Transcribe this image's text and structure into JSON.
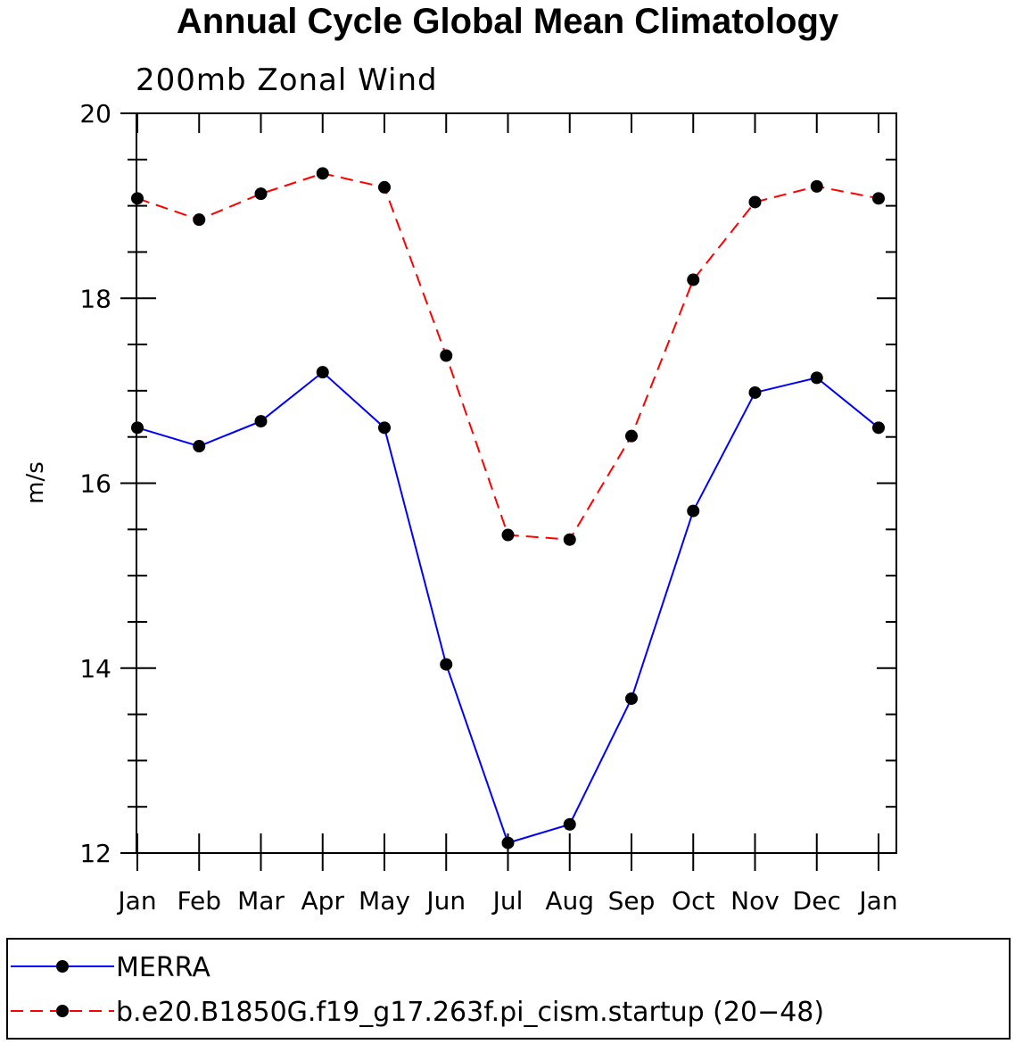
{
  "chart_data": {
    "type": "line",
    "title": "Annual Cycle Global Mean Climatology",
    "subtitle": "200mb Zonal Wind",
    "xlabel": "",
    "ylabel": "m/s",
    "categories": [
      "Jan",
      "Feb",
      "Mar",
      "Apr",
      "May",
      "Jun",
      "Jul",
      "Aug",
      "Sep",
      "Oct",
      "Nov",
      "Dec",
      "Jan"
    ],
    "ylim": [
      12,
      20
    ],
    "yticks": [
      "12",
      "14",
      "16",
      "18",
      "20"
    ],
    "series": [
      {
        "name": "MERRA",
        "color": "#0000ff",
        "dash": "solid",
        "values": [
          16.6,
          16.4,
          16.67,
          17.2,
          16.6,
          14.04,
          12.11,
          12.31,
          13.67,
          15.7,
          16.98,
          17.14,
          16.6
        ]
      },
      {
        "name": "b.e20.B1850G.f19_g17.263f.pi_cism.startup (20−48)",
        "color": "#ff0000",
        "dash": "dashed",
        "values": [
          19.08,
          18.85,
          19.13,
          19.35,
          19.2,
          17.38,
          15.44,
          15.39,
          16.51,
          18.2,
          19.04,
          19.21,
          19.08
        ]
      }
    ],
    "grid": false,
    "legend": "bottom"
  }
}
